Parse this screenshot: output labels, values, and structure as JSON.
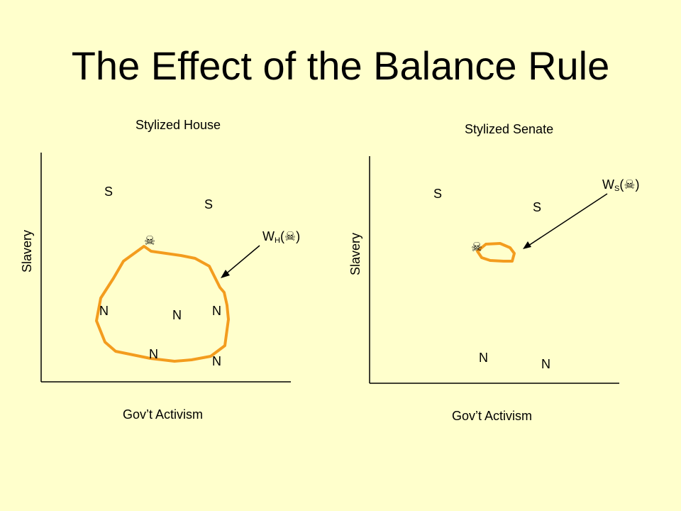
{
  "slide": {
    "title": "The Effect of the Balance Rule"
  },
  "house": {
    "title": "Stylized House",
    "xlabel": "Gov’t Activism",
    "ylabel": "Slavery",
    "points": [
      "S",
      "S",
      "N",
      "N",
      "N",
      "N",
      "N"
    ],
    "win_label": {
      "main": "W",
      "sub": "H",
      "paren_open": "(",
      "symbol": "☠",
      "paren_close": ")"
    },
    "ideal_symbol": "☠",
    "win_set_color": "#F39C1E"
  },
  "senate": {
    "title": "Stylized Senate",
    "xlabel": "Gov’t Activism",
    "ylabel": "Slavery",
    "points": [
      "S",
      "S",
      "N",
      "N"
    ],
    "win_label": {
      "main": "W",
      "sub": "S",
      "paren_open": "(",
      "symbol": "☠",
      "paren_close": ")"
    },
    "ideal_symbol": "☠",
    "win_set_color": "#F39C1E"
  }
}
